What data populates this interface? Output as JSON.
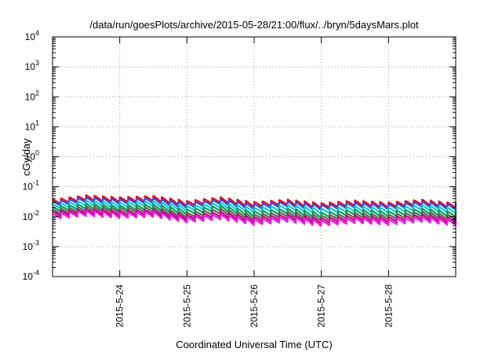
{
  "chart_data": {
    "type": "line",
    "title": "/data/run/goesPlots/archive/2015-05-28/21:00/flux/../bryn/5daysMars.plot",
    "xlabel": "Coordinated Universal Time (UTC)",
    "ylabel": "cGy/day",
    "yscale": "log",
    "ylim": [
      0.0001,
      10000
    ],
    "ytick_labels": [
      {
        "base": "10",
        "exp": "4"
      },
      {
        "base": "10",
        "exp": "3"
      },
      {
        "base": "10",
        "exp": "2"
      },
      {
        "base": "10",
        "exp": "1"
      },
      {
        "base": "10",
        "exp": "0"
      },
      {
        "base": "10",
        "exp": "-1"
      },
      {
        "base": "10",
        "exp": "-2"
      },
      {
        "base": "10",
        "exp": "-3"
      },
      {
        "base": "10",
        "exp": "-4"
      }
    ],
    "xlim": [
      0,
      6
    ],
    "x_unit": "days from 2015-05-23 00:00 UTC",
    "xticks": [
      {
        "x": 1,
        "label": "2015-5-24"
      },
      {
        "x": 2,
        "label": "2015-5-25"
      },
      {
        "x": 3,
        "label": "2015-5-26"
      },
      {
        "x": 4,
        "label": "2015-5-27"
      },
      {
        "x": 5,
        "label": "2015-5-28"
      }
    ],
    "grid": true,
    "legend": "none",
    "x": [
      0.0,
      0.5,
      1.0,
      1.5,
      2.0,
      2.5,
      3.0,
      3.5,
      4.0,
      4.5,
      5.0,
      5.5,
      5.9
    ],
    "series": [
      {
        "color": "#ff0000",
        "values": [
          0.03,
          0.042,
          0.036,
          0.04,
          0.027,
          0.036,
          0.025,
          0.03,
          0.023,
          0.028,
          0.024,
          0.03,
          0.024
        ]
      },
      {
        "color": "#2b4cff",
        "values": [
          0.026,
          0.036,
          0.031,
          0.034,
          0.023,
          0.031,
          0.021,
          0.026,
          0.02,
          0.024,
          0.021,
          0.026,
          0.021
        ]
      },
      {
        "color": "#00d0d0",
        "values": [
          0.021,
          0.028,
          0.024,
          0.027,
          0.018,
          0.024,
          0.016,
          0.02,
          0.015,
          0.018,
          0.016,
          0.02,
          0.016
        ]
      },
      {
        "color": "#00a050",
        "values": [
          0.017,
          0.022,
          0.019,
          0.021,
          0.014,
          0.019,
          0.012,
          0.015,
          0.011,
          0.014,
          0.012,
          0.015,
          0.012
        ]
      },
      {
        "color": "#606060",
        "values": [
          0.014,
          0.018,
          0.016,
          0.017,
          0.011,
          0.015,
          0.0095,
          0.012,
          0.0088,
          0.011,
          0.0095,
          0.012,
          0.0095
        ]
      },
      {
        "color": "#b01060",
        "values": [
          0.012,
          0.015,
          0.013,
          0.014,
          0.0092,
          0.012,
          0.0078,
          0.0098,
          0.0072,
          0.009,
          0.0078,
          0.0098,
          0.0078
        ]
      },
      {
        "color": "#ff00ff",
        "values": [
          0.01,
          0.013,
          0.011,
          0.012,
          0.0078,
          0.01,
          0.0065,
          0.0082,
          0.006,
          0.0075,
          0.0065,
          0.0082,
          0.0065
        ]
      }
    ]
  }
}
